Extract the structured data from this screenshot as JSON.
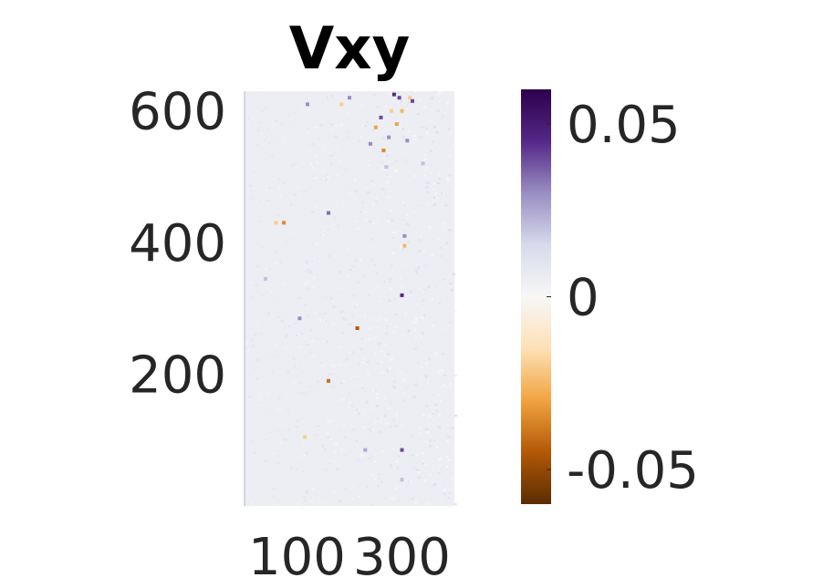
{
  "chart_data": {
    "type": "heatmap",
    "title": "Vxy",
    "xlabel": "",
    "ylabel": "",
    "x_range": [
      0,
      400
    ],
    "y_range": [
      0,
      630
    ],
    "x_ticks": [
      100,
      300
    ],
    "x_tick_labels": [
      "100",
      "300"
    ],
    "y_ticks": [
      200,
      400,
      600
    ],
    "y_tick_labels": [
      "200",
      "400",
      "600"
    ],
    "grid": false,
    "colorbar": {
      "range": [
        -0.06,
        0.06
      ],
      "ticks": [
        0.05,
        0,
        -0.05
      ],
      "tick_labels": [
        "0.05",
        "0",
        "-0.05"
      ],
      "colormap": "orange-white-purple (PuOr)",
      "colors": [
        "#5a2d02",
        "#b35806",
        "#f1a340",
        "#fee0b6",
        "#f7f7f7",
        "#d8daeb",
        "#998ec3",
        "#542788",
        "#2d004b"
      ]
    },
    "background_value": 0,
    "hotspots": [
      {
        "x": 40,
        "y": 345,
        "value": 0.02
      },
      {
        "x": 60,
        "y": 430,
        "value": -0.02
      },
      {
        "x": 105,
        "y": 285,
        "value": 0.03
      },
      {
        "x": 115,
        "y": 105,
        "value": -0.02
      },
      {
        "x": 120,
        "y": 610,
        "value": 0.03
      },
      {
        "x": 160,
        "y": 190,
        "value": -0.04
      },
      {
        "x": 160,
        "y": 445,
        "value": 0.035
      },
      {
        "x": 185,
        "y": 610,
        "value": -0.02
      },
      {
        "x": 200,
        "y": 620,
        "value": 0.03
      },
      {
        "x": 230,
        "y": 85,
        "value": 0.025
      },
      {
        "x": 240,
        "y": 550,
        "value": 0.03
      },
      {
        "x": 250,
        "y": 575,
        "value": -0.03
      },
      {
        "x": 260,
        "y": 590,
        "value": 0.04
      },
      {
        "x": 265,
        "y": 540,
        "value": -0.035
      },
      {
        "x": 270,
        "y": 515,
        "value": 0.02
      },
      {
        "x": 275,
        "y": 560,
        "value": 0.03
      },
      {
        "x": 280,
        "y": 600,
        "value": -0.02
      },
      {
        "x": 285,
        "y": 625,
        "value": 0.045
      },
      {
        "x": 290,
        "y": 580,
        "value": -0.03
      },
      {
        "x": 295,
        "y": 620,
        "value": 0.04
      },
      {
        "x": 300,
        "y": 600,
        "value": -0.025
      },
      {
        "x": 305,
        "y": 410,
        "value": 0.03
      },
      {
        "x": 305,
        "y": 395,
        "value": -0.025
      },
      {
        "x": 310,
        "y": 555,
        "value": 0.03
      },
      {
        "x": 315,
        "y": 620,
        "value": -0.02
      },
      {
        "x": 320,
        "y": 615,
        "value": 0.04
      },
      {
        "x": 300,
        "y": 320,
        "value": 0.045
      },
      {
        "x": 300,
        "y": 85,
        "value": 0.04
      },
      {
        "x": 340,
        "y": 520,
        "value": 0.02
      },
      {
        "x": 300,
        "y": 40,
        "value": 0.02
      },
      {
        "x": 215,
        "y": 270,
        "value": -0.045
      },
      {
        "x": 75,
        "y": 430,
        "value": -0.035
      }
    ]
  }
}
